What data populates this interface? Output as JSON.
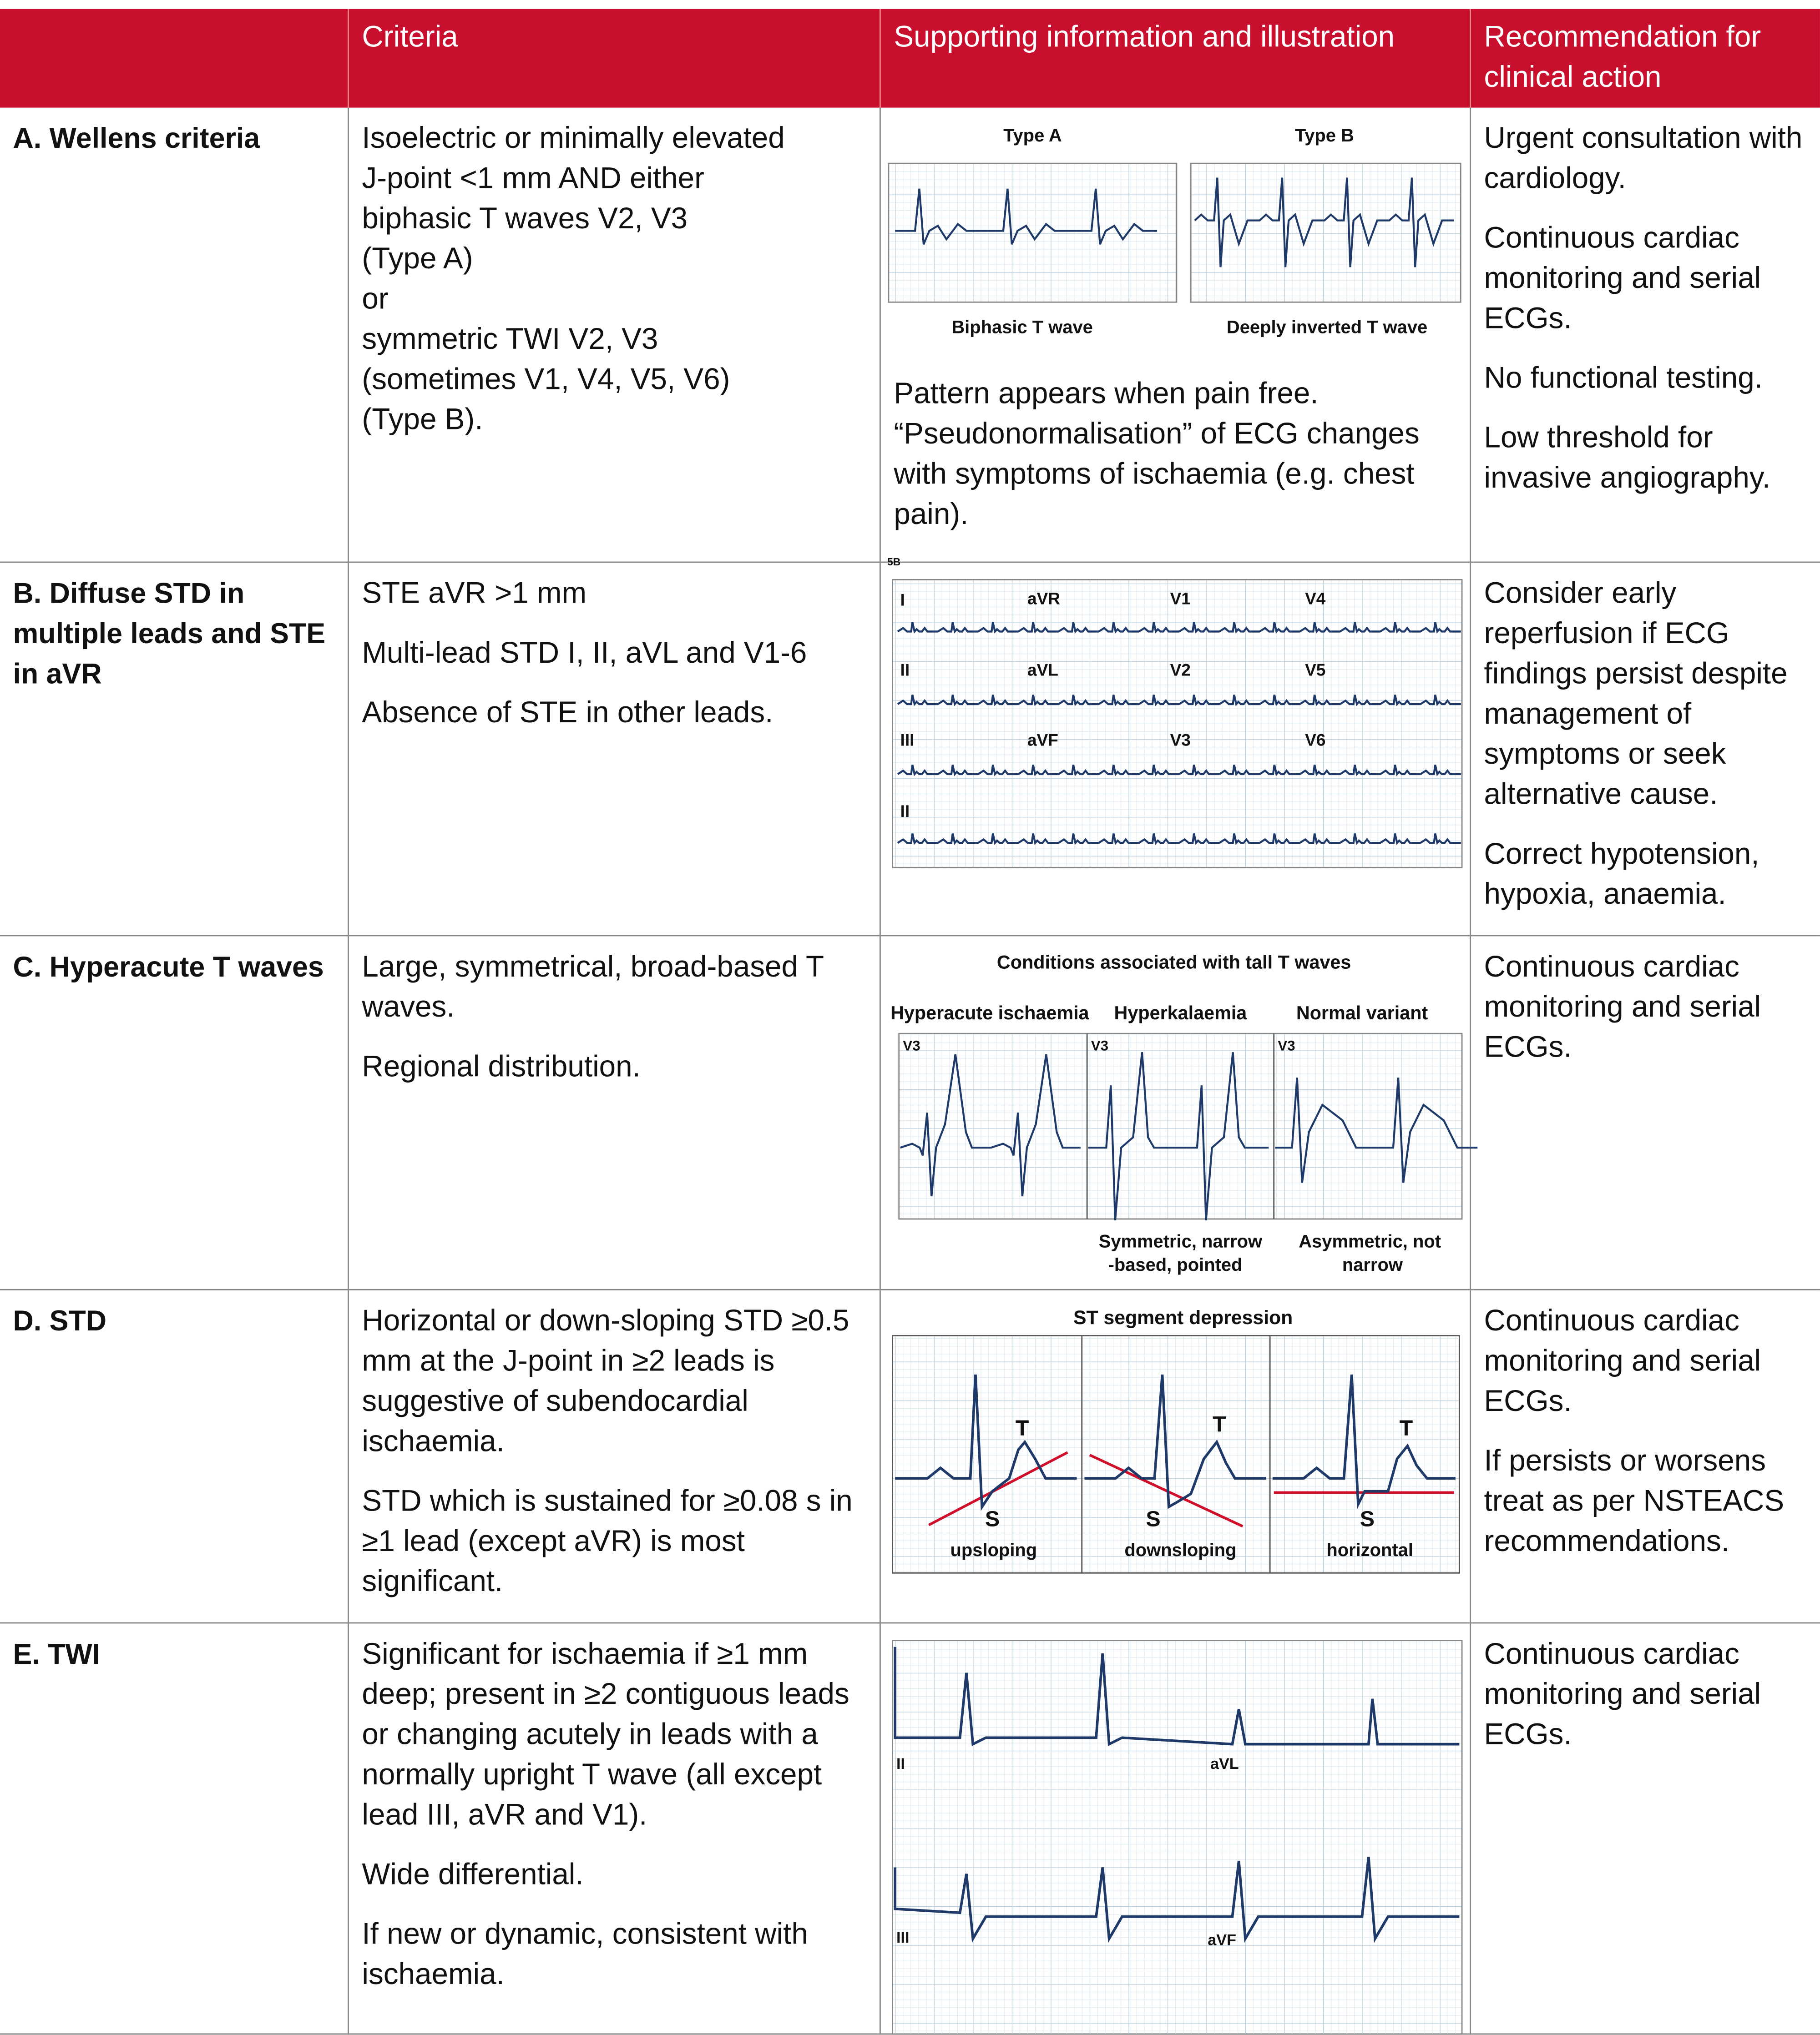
{
  "table": {
    "header": [
      "Criteria",
      "Supporting information and illustration",
      "Recommendation for clinical action"
    ],
    "rows": [
      {
        "label": "A. Wellens criteria",
        "criteria_lines": [
          "Isoelectric or minimally elevated",
          "J-point <1 mm AND either",
          "biphasic T waves V2, V3",
          "(Type A)",
          "or",
          "symmetric TWI V2, V3",
          "(sometimes V1, V4, V5, V6)",
          "(Type B)."
        ],
        "illustration": {
          "labels": [
            "Type A",
            "Type B",
            "Biphasic T wave",
            "Deeply inverted T wave"
          ]
        },
        "support_text": "Pattern appears when pain free. “Pseudonormalisation” of ECG changes with symptoms of ischaemia (e.g. chest pain).",
        "recommendation": [
          "Urgent consultation with cardiology.",
          "Continuous cardiac monitoring and serial ECGs.",
          "No functional testing.",
          "Low threshold for invasive angiography."
        ]
      },
      {
        "label": "B. Diffuse STD in multiple leads and STE in aVR",
        "criteria": [
          "STE aVR >1 mm",
          "Multi-lead STD I, II, aVL and V1-6",
          "Absence of STE in other leads."
        ],
        "illustration": {
          "labels": [
            "5B",
            "I",
            "aVR",
            "V1",
            "V4",
            "II",
            "aVL",
            "V2",
            "V5",
            "III",
            "aVF",
            "V3",
            "V6",
            "II"
          ]
        },
        "recommendation": [
          "Consider early reperfusion if ECG findings persist despite management of symptoms or seek alternative cause.",
          "Correct hypotension, hypoxia, anaemia."
        ]
      },
      {
        "label": "C. Hyperacute T waves",
        "criteria": [
          "Large, symmetrical, broad-based T waves.",
          "Regional distribution."
        ],
        "illustration": {
          "labels": [
            "Conditions associated with tall T waves",
            "Hyperacute ischaemia",
            "Hyperkalaemia",
            "Normal variant",
            "V3",
            "V3",
            "V3",
            "Symmetric, narrow",
            "-based, pointed",
            "Asymmetric, not",
            "narrow"
          ]
        },
        "recommendation": [
          "Continuous cardiac monitoring and serial ECGs."
        ]
      },
      {
        "label": "D. STD",
        "criteria": [
          "Horizontal or down-sloping STD ≥0.5 mm at the J-point in ≥2 leads is suggestive of subendocardial ischaemia.",
          "STD which is sustained for ≥0.08 s in ≥1 lead (except aVR) is most significant."
        ],
        "illustration": {
          "labels": [
            "ST segment depression",
            "T",
            "S",
            "upsloping",
            "T",
            "S",
            "downsloping",
            "T",
            "S",
            "horizontal"
          ]
        },
        "recommendation": [
          "Continuous cardiac monitoring and serial ECGs.",
          "If persists or worsens treat as per NSTEACS recommendations."
        ]
      },
      {
        "label": "E. TWI",
        "criteria": [
          "Significant for ischaemia if ≥1 mm deep; present in ≥2 contiguous leads or changing acutely in leads with a normally upright T wave (all except lead III, aVR and V1).",
          "Wide differential.",
          "If new or dynamic, consistent with ischaemia."
        ],
        "illustration": {
          "labels": [
            "II",
            "aVL",
            "III",
            "aVF"
          ]
        },
        "recommendation": [
          "Continuous cardiac monitoring and serial ECGs."
        ]
      }
    ]
  }
}
